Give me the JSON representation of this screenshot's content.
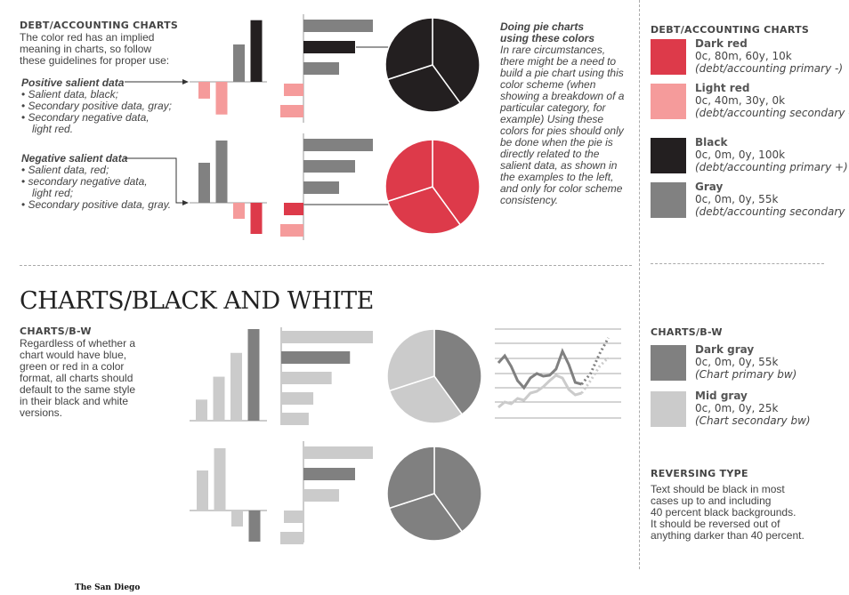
{
  "colors": {
    "dark_red": "#dd3a4a",
    "light_red": "#f59b9b",
    "black": "#231f20",
    "gray": "#818181",
    "dark_gray": "#808080",
    "mid_gray": "#cbcbcb"
  },
  "section1": {
    "heading": "DEBT/ACCOUNTING CHARTS",
    "intro": [
      "The color red has an implied",
      "meaning in charts, so follow",
      "these guidelines for proper use:"
    ],
    "positive": {
      "title": "Positive salient data",
      "items": [
        "Salient data, black;",
        "Secondary positive data, gray;",
        "Secondary negative data,",
        "light red."
      ]
    },
    "negative": {
      "title": "Negative salient data",
      "items": [
        "Salient data, red;",
        "secondary negative data,",
        "light red;",
        "Secondary positive data, gray."
      ]
    }
  },
  "pie_note": {
    "title_lines": [
      "Doing pie charts",
      "using these colors"
    ],
    "lines": [
      "In rare circumstances,",
      "there might be a need to",
      "build a pie chart using this",
      "color scheme (when",
      "showing a breakdown of a",
      "particular category, for",
      "example) Using these",
      "colors for pies should only",
      "be done when the pie is",
      "directly related to the",
      "salient data, as shown in",
      "the examples to the left,",
      "and only for color scheme",
      "consistency."
    ]
  },
  "palette_debt": {
    "heading": "DEBT/ACCOUNTING CHARTS",
    "swatches": [
      {
        "name": "Dark red",
        "cmyk": "0c, 80m, 60y, 10k",
        "use": "(debt/accounting primary -)",
        "color": "#dd3a4a"
      },
      {
        "name": "Light red",
        "cmyk": "0c, 40m, 30y, 0k",
        "use": "(debt/accounting secondary -)",
        "color": "#f59b9b"
      },
      {
        "name": "Black",
        "cmyk": "0c, 0m, 0y, 100k",
        "use": "(debt/accounting primary +)",
        "color": "#231f20"
      },
      {
        "name": "Gray",
        "cmyk": "0c, 0m, 0y, 55k",
        "use": "(debt/accounting secondary +)",
        "color": "#818181"
      }
    ]
  },
  "section2": {
    "title": "CHARTS/BLACK AND WHITE",
    "heading": "CHARTS/B-W",
    "lines": [
      "Regardless of whether a",
      "chart would have blue,",
      "green or red in a color",
      "format, all charts should",
      "default to the same style",
      "in their black and white",
      "versions."
    ]
  },
  "palette_bw": {
    "heading": "CHARTS/B-W",
    "swatches": [
      {
        "name": "Dark gray",
        "cmyk": "0c, 0m, 0y, 55k",
        "use": "(Chart primary bw)",
        "color": "#808080"
      },
      {
        "name": "Mid gray",
        "cmyk": "0c, 0m, 0y, 25k",
        "use": "(Chart secondary bw)",
        "color": "#cbcbcb"
      }
    ]
  },
  "reversing": {
    "heading": "REVERSING TYPE",
    "lines": [
      "Text should be black in most",
      "cases up to and including",
      "40 percent black backgrounds.",
      "It should be reversed out of",
      "anything darker than 40 percent."
    ]
  },
  "logo": "The San Diego",
  "chart_data": [
    {
      "type": "bar",
      "id": "red-pos-vbar",
      "values": [
        -0.18,
        -0.35,
        0.4,
        0.66
      ],
      "colors": [
        "light_red",
        "light_red",
        "gray",
        "black"
      ]
    },
    {
      "type": "bar",
      "id": "red-pos-hbar",
      "values": [
        0.78,
        0.58,
        0.4,
        -0.22,
        -0.26
      ],
      "colors": [
        "gray",
        "black",
        "gray",
        "light_red",
        "light_red"
      ]
    },
    {
      "type": "pie",
      "id": "red-pos-pie",
      "values": [
        40,
        30,
        30
      ],
      "colors": [
        "black",
        "black",
        "black"
      ]
    },
    {
      "type": "bar",
      "id": "red-neg-vbar",
      "values": [
        0.45,
        0.7,
        -0.18,
        -0.35
      ],
      "colors": [
        "gray",
        "gray",
        "light_red",
        "dark_red"
      ]
    },
    {
      "type": "bar",
      "id": "red-neg-hbar",
      "values": [
        0.78,
        0.58,
        0.4,
        -0.22,
        -0.26
      ],
      "colors": [
        "gray",
        "gray",
        "gray",
        "dark_red",
        "light_red"
      ]
    },
    {
      "type": "pie",
      "id": "red-neg-pie",
      "values": [
        40,
        30,
        30
      ],
      "colors": [
        "dark_red",
        "dark_red",
        "dark_red"
      ]
    },
    {
      "type": "bar",
      "id": "bw-vbar",
      "values": [
        0.23,
        0.48,
        0.74,
        1.0
      ],
      "colors": [
        "mid_gray",
        "mid_gray",
        "mid_gray",
        "dark_gray"
      ]
    },
    {
      "type": "bar",
      "id": "bw-hbar",
      "values": [
        1.0,
        0.75,
        0.55,
        0.35,
        0.3
      ],
      "colors": [
        "mid_gray",
        "dark_gray",
        "mid_gray",
        "mid_gray",
        "mid_gray"
      ]
    },
    {
      "type": "pie",
      "id": "bw-pie1",
      "values": [
        40,
        30,
        30
      ],
      "colors": [
        "dark_gray",
        "mid_gray",
        "mid_gray"
      ]
    },
    {
      "type": "line",
      "id": "bw-line",
      "series": [
        {
          "values": [
            0.62,
            0.7,
            0.58,
            0.42,
            0.34,
            0.45,
            0.5,
            0.47,
            0.48,
            0.55,
            0.75,
            0.6,
            0.4,
            0.38
          ],
          "color": "dark_gray"
        },
        {
          "values": [
            0.12,
            0.18,
            0.16,
            0.22,
            0.2,
            0.28,
            0.3,
            0.35,
            0.42,
            0.48,
            0.45,
            0.32,
            0.26,
            0.28
          ],
          "color": "mid_gray"
        }
      ]
    },
    {
      "type": "bar",
      "id": "bw-neg-vbar",
      "values": [
        0.45,
        0.7,
        -0.18,
        -0.35
      ],
      "colors": [
        "mid_gray",
        "mid_gray",
        "mid_gray",
        "dark_gray"
      ]
    },
    {
      "type": "bar",
      "id": "bw-neg-hbar",
      "values": [
        0.78,
        0.58,
        0.4,
        -0.22,
        -0.26
      ],
      "colors": [
        "mid_gray",
        "dark_gray",
        "mid_gray",
        "mid_gray",
        "mid_gray"
      ]
    },
    {
      "type": "pie",
      "id": "bw-pie2",
      "values": [
        40,
        30,
        30
      ],
      "colors": [
        "dark_gray",
        "dark_gray",
        "dark_gray"
      ]
    }
  ]
}
